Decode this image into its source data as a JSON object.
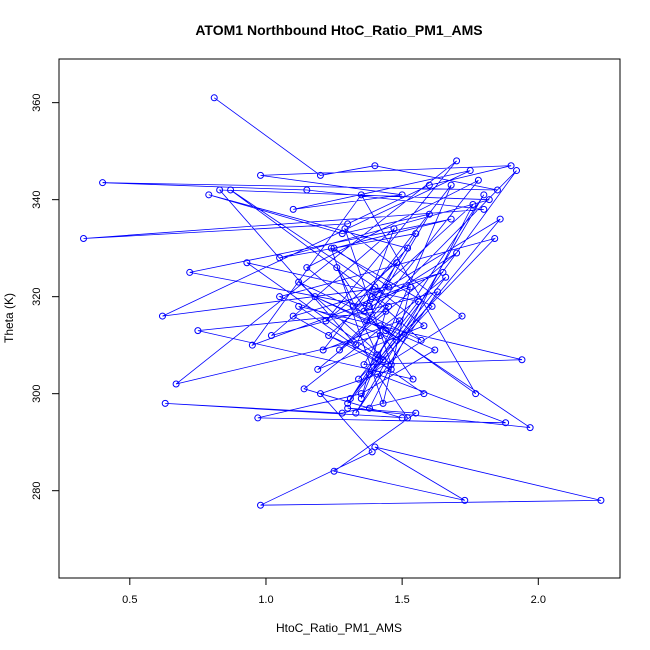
{
  "chart_data": {
    "type": "line",
    "title": "ATOM1 Northbound HtoC_Ratio_PM1_AMS",
    "xlabel": "HtoC_Ratio_PM1_AMS",
    "ylabel": "Theta (K)",
    "xlim": [
      0.24,
      2.3
    ],
    "ylim": [
      262,
      369
    ],
    "xticks": [
      0.5,
      1.0,
      1.5,
      2.0
    ],
    "yticks": [
      280,
      300,
      320,
      340,
      360
    ],
    "xtick_labels": [
      "0.5",
      "1.0",
      "1.5",
      "2.0"
    ],
    "ytick_labels": [
      "280",
      "300",
      "320",
      "340",
      "360"
    ],
    "grid": false,
    "markers": "open-circle",
    "series_color": "#0000ff",
    "series": [
      {
        "x": [
          0.81,
          1.2,
          1.4,
          1.85,
          0.4,
          1.15,
          1.8,
          0.33,
          1.3,
          1.6,
          1.9,
          0.98,
          1.5,
          1.1,
          1.75,
          0.62,
          1.45,
          1.25,
          1.68,
          0.72,
          1.38,
          1.55,
          1.05,
          1.82,
          0.83,
          1.33,
          1.48,
          1.22,
          1.7,
          0.67,
          1.42,
          1.36,
          1.94,
          1.12,
          1.58,
          1.28,
          0.63,
          1.52,
          1.41,
          1.88,
          0.97,
          1.35,
          1.62,
          1.18,
          1.44,
          1.97,
          1.3,
          1.55,
          1.25,
          1.73,
          1.4,
          2.23,
          0.98,
          1.39,
          1.2,
          1.46,
          1.1,
          1.65,
          1.32,
          1.52,
          0.79,
          1.28,
          1.6,
          1.37,
          1.78,
          1.15,
          1.48,
          1.05,
          1.84,
          1.34,
          1.56,
          0.93,
          1.43,
          1.23,
          1.76,
          1.38,
          1.5,
          1.14,
          1.66,
          1.31,
          1.92,
          1.27,
          1.45,
          0.87,
          1.4,
          1.58,
          1.19,
          1.7,
          1.36,
          1.47,
          1.02,
          1.63,
          1.33,
          1.8,
          1.41,
          1.26,
          1.54,
          0.75,
          1.44,
          1.35,
          1.68,
          1.21,
          1.49,
          1.3,
          1.86,
          1.39,
          1.57,
          1.12,
          1.46,
          1.29,
          1.72,
          1.38,
          1.61,
          1.24,
          1.43,
          1.53,
          0.95,
          1.35,
          1.77,
          1.42
        ],
        "y": [
          361,
          345,
          347,
          342,
          343.5,
          342,
          338,
          332,
          335,
          343,
          347,
          345,
          341,
          338,
          346,
          316,
          322,
          330,
          336,
          325,
          318,
          333,
          328,
          340,
          342,
          310,
          327,
          315,
          348,
          302,
          312,
          306,
          307,
          318,
          300,
          296,
          298,
          295,
          304,
          294,
          295,
          300,
          309,
          320,
          313,
          293,
          297,
          296,
          284,
          278,
          289,
          278,
          277,
          288,
          300,
          305,
          316,
          325,
          318,
          330,
          341,
          333,
          337,
          315,
          344,
          326,
          311,
          320,
          332,
          303,
          319,
          327,
          307,
          312,
          339,
          297,
          295,
          301,
          324,
          299,
          346,
          309,
          318,
          342,
          322,
          314,
          305,
          329,
          317,
          334,
          312,
          321,
          296,
          341,
          308,
          326,
          303,
          313,
          317,
          299,
          343,
          309,
          315,
          298,
          336,
          320,
          311,
          323,
          306,
          334,
          316,
          304,
          318,
          330,
          298,
          322,
          310,
          341,
          300,
          314
        ]
      }
    ]
  }
}
